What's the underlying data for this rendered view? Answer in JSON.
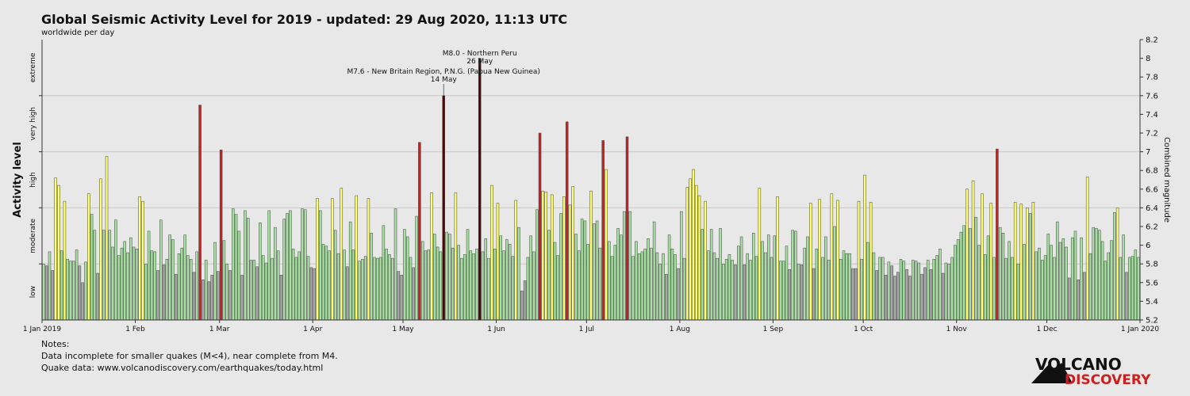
{
  "chart_data": {
    "type": "bar",
    "title": "Global Seismic Activity Level for 2019 - updated: 29 Aug 2020, 11:13 UTC",
    "subtitle": "worldwide per day",
    "y_label": "Activity level",
    "y2_label": "Combined magnitude",
    "levels": [
      {
        "name": "low",
        "from": 5.2,
        "to": 5.8,
        "color": "#a8a8a8"
      },
      {
        "name": "moderate",
        "from": 5.8,
        "to": 6.4,
        "color": "#a6e0a0"
      },
      {
        "name": "high",
        "from": 6.4,
        "to": 7.0,
        "color": "#ffff66"
      },
      {
        "name": "very high",
        "from": 7.0,
        "to": 7.6,
        "color": "#cc2020"
      },
      {
        "name": "extreme",
        "from": 7.6,
        "to": 8.2,
        "color": "#4a0808"
      }
    ],
    "ylim": [
      5.2,
      8.2
    ],
    "yticks": [
      5.2,
      5.4,
      5.6,
      5.8,
      6,
      6.2,
      6.4,
      6.6,
      6.8,
      7,
      7.2,
      7.4,
      7.6,
      7.8,
      8,
      8.2
    ],
    "xlim": [
      "2019-01-01",
      "2020-01-01"
    ],
    "xticks": [
      {
        "value": "2019-01-01",
        "label": "1 Jan 2019"
      },
      {
        "value": "2019-02-01",
        "label": "1 Feb"
      },
      {
        "value": "2019-03-01",
        "label": "1 Mar"
      },
      {
        "value": "2019-04-01",
        "label": "1 Apr"
      },
      {
        "value": "2019-05-01",
        "label": "1 May"
      },
      {
        "value": "2019-06-01",
        "label": "1 Jun"
      },
      {
        "value": "2019-07-01",
        "label": "1 Jul"
      },
      {
        "value": "2019-08-01",
        "label": "1 Aug"
      },
      {
        "value": "2019-09-01",
        "label": "1 Sep"
      },
      {
        "value": "2019-10-01",
        "label": "1 Oct"
      },
      {
        "value": "2019-11-01",
        "label": "1 Nov"
      },
      {
        "value": "2019-12-01",
        "label": "1 Dec"
      },
      {
        "value": "2020-01-01",
        "label": "1 Jan 2020"
      }
    ],
    "grid": true,
    "annotations": [
      {
        "text": "M8.0 - Northern Peru",
        "date": "26 May",
        "x": "2019-05-26",
        "y": 8.0
      },
      {
        "text": "M7.6 - New Britain Region, P.N.G. (Papua New Guinea)",
        "date": "14 May",
        "x": "2019-05-14",
        "y": 7.6
      }
    ],
    "x": [
      "2019-01-01",
      "2019-01-02",
      "2019-01-03",
      "2019-01-04",
      "2019-01-05",
      "2019-01-06",
      "2019-01-07",
      "2019-01-08",
      "2019-01-09",
      "2019-01-10",
      "2019-01-11",
      "2019-01-12",
      "2019-01-13",
      "2019-01-14",
      "2019-01-15",
      "2019-01-16",
      "2019-01-17",
      "2019-01-18",
      "2019-01-19",
      "2019-01-20",
      "2019-01-21",
      "2019-01-22",
      "2019-01-23",
      "2019-01-24",
      "2019-01-25",
      "2019-01-26",
      "2019-01-27",
      "2019-01-28",
      "2019-01-29",
      "2019-01-30",
      "2019-01-31",
      "2019-02-01",
      "2019-02-02",
      "2019-02-03",
      "2019-02-04",
      "2019-02-05",
      "2019-02-06",
      "2019-02-07",
      "2019-02-08",
      "2019-02-09",
      "2019-02-10",
      "2019-02-11",
      "2019-02-12",
      "2019-02-13",
      "2019-02-14",
      "2019-02-15",
      "2019-02-16",
      "2019-02-17",
      "2019-02-18",
      "2019-02-19",
      "2019-02-20",
      "2019-02-21",
      "2019-02-22",
      "2019-02-23",
      "2019-02-24",
      "2019-02-25",
      "2019-02-26",
      "2019-02-27",
      "2019-02-28",
      "2019-03-01",
      "2019-03-02",
      "2019-03-03",
      "2019-03-04",
      "2019-03-05",
      "2019-03-06",
      "2019-03-07",
      "2019-03-08",
      "2019-03-09",
      "2019-03-10",
      "2019-03-11",
      "2019-03-12",
      "2019-03-13",
      "2019-03-14",
      "2019-03-15",
      "2019-03-16",
      "2019-03-17",
      "2019-03-18",
      "2019-03-19",
      "2019-03-20",
      "2019-03-21",
      "2019-03-22",
      "2019-03-23",
      "2019-03-24",
      "2019-03-25",
      "2019-03-26",
      "2019-03-27",
      "2019-03-28",
      "2019-03-29",
      "2019-03-30",
      "2019-03-31",
      "2019-04-01",
      "2019-04-02",
      "2019-04-03",
      "2019-04-04",
      "2019-04-05",
      "2019-04-06",
      "2019-04-07",
      "2019-04-08",
      "2019-04-09",
      "2019-04-10",
      "2019-04-11",
      "2019-04-12",
      "2019-04-13",
      "2019-04-14",
      "2019-04-15",
      "2019-04-16",
      "2019-04-17",
      "2019-04-18",
      "2019-04-19",
      "2019-04-20",
      "2019-04-21",
      "2019-04-22",
      "2019-04-23",
      "2019-04-24",
      "2019-04-25",
      "2019-04-26",
      "2019-04-27",
      "2019-04-28",
      "2019-04-29",
      "2019-04-30",
      "2019-05-01",
      "2019-05-02",
      "2019-05-03",
      "2019-05-04",
      "2019-05-05",
      "2019-05-06",
      "2019-05-07",
      "2019-05-08",
      "2019-05-09",
      "2019-05-10",
      "2019-05-11",
      "2019-05-12",
      "2019-05-13",
      "2019-05-14",
      "2019-05-15",
      "2019-05-16",
      "2019-05-17",
      "2019-05-18",
      "2019-05-19",
      "2019-05-20",
      "2019-05-21",
      "2019-05-22",
      "2019-05-23",
      "2019-05-24",
      "2019-05-25",
      "2019-05-26",
      "2019-05-27",
      "2019-05-28",
      "2019-05-29",
      "2019-05-30",
      "2019-05-31",
      "2019-06-01",
      "2019-06-02",
      "2019-06-03",
      "2019-06-04",
      "2019-06-05",
      "2019-06-06",
      "2019-06-07",
      "2019-06-08",
      "2019-06-09",
      "2019-06-10",
      "2019-06-11",
      "2019-06-12",
      "2019-06-13",
      "2019-06-14",
      "2019-06-15",
      "2019-06-16",
      "2019-06-17",
      "2019-06-18",
      "2019-06-19",
      "2019-06-20",
      "2019-06-21",
      "2019-06-22",
      "2019-06-23",
      "2019-06-24",
      "2019-06-25",
      "2019-06-26",
      "2019-06-27",
      "2019-06-28",
      "2019-06-29",
      "2019-06-30",
      "2019-07-01",
      "2019-07-02",
      "2019-07-03",
      "2019-07-04",
      "2019-07-05",
      "2019-07-06",
      "2019-07-07",
      "2019-07-08",
      "2019-07-09",
      "2019-07-10",
      "2019-07-11",
      "2019-07-12",
      "2019-07-13",
      "2019-07-14",
      "2019-07-15",
      "2019-07-16",
      "2019-07-17",
      "2019-07-18",
      "2019-07-19",
      "2019-07-20",
      "2019-07-21",
      "2019-07-22",
      "2019-07-23",
      "2019-07-24",
      "2019-07-25",
      "2019-07-26",
      "2019-07-27",
      "2019-07-28",
      "2019-07-29",
      "2019-07-30",
      "2019-07-31",
      "2019-08-01",
      "2019-08-02",
      "2019-08-03",
      "2019-08-04",
      "2019-08-05",
      "2019-08-06",
      "2019-08-07",
      "2019-08-08",
      "2019-08-09",
      "2019-08-10",
      "2019-08-11",
      "2019-08-12",
      "2019-08-13",
      "2019-08-14",
      "2019-08-15",
      "2019-08-16",
      "2019-08-17",
      "2019-08-18",
      "2019-08-19",
      "2019-08-20",
      "2019-08-21",
      "2019-08-22",
      "2019-08-23",
      "2019-08-24",
      "2019-08-25",
      "2019-08-26",
      "2019-08-27",
      "2019-08-28",
      "2019-08-29",
      "2019-08-30",
      "2019-08-31",
      "2019-09-01",
      "2019-09-02",
      "2019-09-03",
      "2019-09-04",
      "2019-09-05",
      "2019-09-06",
      "2019-09-07",
      "2019-09-08",
      "2019-09-09",
      "2019-09-10",
      "2019-09-11",
      "2019-09-12",
      "2019-09-13",
      "2019-09-14",
      "2019-09-15",
      "2019-09-16",
      "2019-09-17",
      "2019-09-18",
      "2019-09-19",
      "2019-09-20",
      "2019-09-21",
      "2019-09-22",
      "2019-09-23",
      "2019-09-24",
      "2019-09-25",
      "2019-09-26",
      "2019-09-27",
      "2019-09-28",
      "2019-09-29",
      "2019-09-30",
      "2019-10-01",
      "2019-10-02",
      "2019-10-03",
      "2019-10-04",
      "2019-10-05",
      "2019-10-06",
      "2019-10-07",
      "2019-10-08",
      "2019-10-09",
      "2019-10-10",
      "2019-10-11",
      "2019-10-12",
      "2019-10-13",
      "2019-10-14",
      "2019-10-15",
      "2019-10-16",
      "2019-10-17",
      "2019-10-18",
      "2019-10-19",
      "2019-10-20",
      "2019-10-21",
      "2019-10-22",
      "2019-10-23",
      "2019-10-24",
      "2019-10-25",
      "2019-10-26",
      "2019-10-27",
      "2019-10-28",
      "2019-10-29",
      "2019-10-30",
      "2019-10-31",
      "2019-11-01",
      "2019-11-02",
      "2019-11-03",
      "2019-11-04",
      "2019-11-05",
      "2019-11-06",
      "2019-11-07",
      "2019-11-08",
      "2019-11-09",
      "2019-11-10",
      "2019-11-11",
      "2019-11-12",
      "2019-11-13",
      "2019-11-14",
      "2019-11-15",
      "2019-11-16",
      "2019-11-17",
      "2019-11-18",
      "2019-11-19",
      "2019-11-20",
      "2019-11-21",
      "2019-11-22",
      "2019-11-23",
      "2019-11-24",
      "2019-11-25",
      "2019-11-26",
      "2019-11-27",
      "2019-11-28",
      "2019-11-29",
      "2019-11-30",
      "2019-12-01",
      "2019-12-02",
      "2019-12-03",
      "2019-12-04",
      "2019-12-05",
      "2019-12-06",
      "2019-12-07",
      "2019-12-08",
      "2019-12-09",
      "2019-12-10",
      "2019-12-11",
      "2019-12-12",
      "2019-12-13",
      "2019-12-14",
      "2019-12-15",
      "2019-12-16",
      "2019-12-17",
      "2019-12-18",
      "2019-12-19",
      "2019-12-20",
      "2019-12-21",
      "2019-12-22",
      "2019-12-23",
      "2019-12-24",
      "2019-12-25",
      "2019-12-26",
      "2019-12-27",
      "2019-12-28",
      "2019-12-29",
      "2019-12-30",
      "2019-12-31"
    ],
    "values": [
      5.8,
      5.78,
      5.93,
      5.73,
      6.72,
      6.64,
      5.94,
      6.47,
      5.85,
      5.83,
      5.83,
      5.95,
      5.78,
      5.6,
      5.82,
      6.55,
      6.33,
      6.16,
      5.7,
      6.71,
      6.16,
      6.95,
      6.16,
      5.98,
      6.27,
      5.89,
      5.97,
      6.04,
      5.92,
      6.08,
      5.98,
      5.96,
      6.52,
      6.47,
      5.8,
      6.15,
      5.94,
      5.93,
      5.73,
      6.27,
      5.79,
      5.85,
      6.11,
      6.06,
      5.69,
      5.91,
      5.97,
      6.11,
      5.89,
      5.85,
      5.71,
      5.93,
      7.5,
      5.63,
      5.84,
      5.61,
      5.68,
      6.03,
      5.72,
      7.02,
      6.05,
      5.8,
      5.73,
      6.39,
      6.33,
      6.15,
      5.68,
      6.37,
      6.29,
      5.84,
      5.84,
      5.77,
      6.24,
      5.89,
      5.81,
      6.37,
      5.86,
      6.19,
      5.94,
      5.68,
      6.28,
      6.34,
      6.37,
      5.96,
      5.87,
      5.93,
      6.39,
      6.38,
      5.88,
      5.76,
      5.75,
      6.5,
      6.37,
      6.01,
      5.99,
      5.94,
      6.5,
      6.16,
      5.91,
      6.61,
      5.95,
      5.77,
      6.25,
      5.95,
      6.53,
      5.83,
      5.85,
      5.88,
      6.5,
      6.13,
      5.87,
      5.86,
      5.87,
      6.21,
      5.96,
      5.9,
      5.86,
      6.39,
      5.72,
      5.68,
      6.17,
      6.09,
      5.87,
      5.76,
      6.31,
      7.1,
      6.04,
      5.94,
      5.95,
      6.56,
      6.12,
      5.98,
      5.93,
      7.6,
      6.14,
      6.12,
      5.97,
      6.56,
      6.0,
      5.86,
      5.9,
      6.17,
      5.94,
      5.91,
      5.96,
      8.0,
      5.93,
      6.07,
      5.86,
      6.64,
      5.96,
      6.45,
      6.1,
      5.94,
      6.06,
      6.01,
      5.88,
      6.48,
      6.19,
      5.51,
      5.62,
      5.87,
      6.1,
      5.93,
      6.38,
      7.2,
      6.58,
      6.57,
      6.16,
      6.54,
      6.03,
      5.89,
      6.34,
      6.52,
      7.32,
      6.43,
      6.63,
      6.12,
      5.94,
      6.28,
      6.26,
      6.01,
      6.58,
      6.23,
      6.26,
      5.97,
      7.12,
      6.81,
      6.04,
      5.88,
      6.0,
      6.18,
      6.11,
      6.36,
      7.16,
      6.36,
      5.88,
      6.04,
      5.91,
      5.93,
      5.96,
      6.07,
      5.97,
      6.25,
      5.92,
      5.8,
      5.91,
      5.69,
      6.11,
      5.96,
      5.9,
      5.75,
      6.36,
      5.86,
      6.62,
      6.71,
      6.81,
      6.64,
      6.53,
      6.17,
      6.47,
      5.94,
      6.17,
      5.92,
      5.86,
      6.18,
      5.8,
      5.85,
      5.9,
      5.84,
      5.79,
      5.99,
      6.09,
      5.79,
      5.91,
      5.84,
      6.13,
      5.88,
      6.61,
      6.04,
      5.92,
      6.11,
      5.87,
      6.1,
      6.52,
      5.83,
      5.83,
      5.99,
      5.74,
      6.16,
      6.15,
      5.8,
      5.79,
      5.97,
      6.09,
      6.45,
      5.75,
      5.96,
      6.49,
      5.87,
      6.09,
      5.84,
      6.55,
      6.2,
      6.48,
      5.85,
      5.94,
      5.91,
      5.91,
      5.75,
      5.75,
      6.47,
      5.85,
      6.75,
      6.03,
      6.46,
      5.92,
      5.73,
      5.87,
      5.87,
      5.68,
      5.82,
      5.78,
      5.67,
      5.71,
      5.85,
      5.83,
      5.74,
      5.67,
      5.84,
      5.83,
      5.81,
      5.69,
      5.76,
      5.84,
      5.74,
      5.85,
      5.89,
      5.96,
      5.7,
      5.81,
      5.8,
      5.87,
      6.0,
      6.06,
      6.14,
      6.21,
      6.6,
      6.18,
      6.69,
      6.3,
      6.0,
      6.55,
      5.9,
      6.1,
      6.45,
      5.87,
      7.03,
      6.19,
      6.13,
      5.86,
      6.04,
      5.87,
      6.46,
      5.8,
      6.44,
      6.01,
      6.4,
      6.34,
      6.46,
      5.93,
      5.97,
      5.84,
      5.89,
      6.12,
      6.0,
      5.87,
      6.25,
      6.03,
      6.07,
      5.98,
      5.65,
      6.08,
      6.15,
      5.63,
      6.08,
      5.71,
      6.73,
      5.91,
      6.19,
      6.18,
      6.16,
      6.04,
      5.83,
      5.92,
      6.05,
      6.35,
      6.4,
      5.87,
      6.11,
      5.71,
      5.87,
      5.88,
      5.95,
      5.87
    ]
  },
  "notes": {
    "heading": "Notes:",
    "lines": [
      "Data incomplete for smaller quakes (M<4), near complete from M4.",
      "Quake data: www.volcanodiscovery.com/earthquakes/today.html"
    ]
  },
  "logo": {
    "top": "VOLCANO",
    "bottom": "DISCOVERY"
  }
}
